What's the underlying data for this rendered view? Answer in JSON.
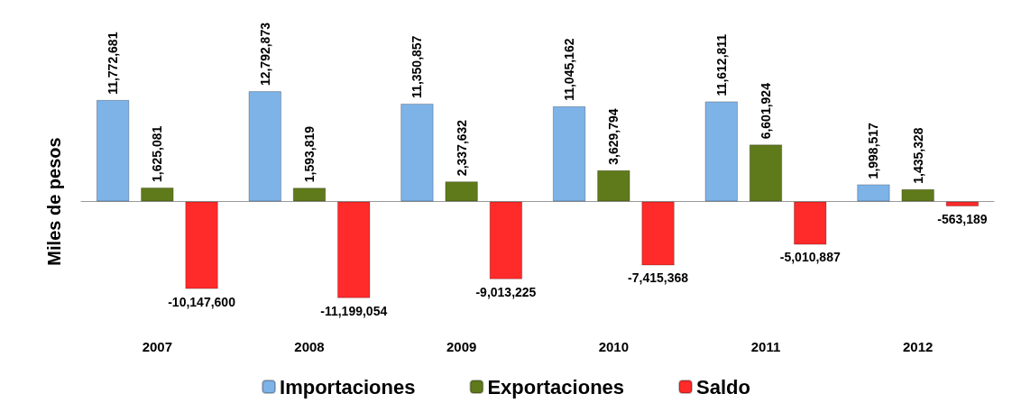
{
  "chart_data": {
    "type": "bar",
    "ylabel": "Miles de pesos",
    "categories": [
      "2007",
      "2008",
      "2009",
      "2010",
      "2011",
      "2012"
    ],
    "series": [
      {
        "name": "Importaciones",
        "color": "#7eb3e8",
        "values": [
          11772681,
          12792873,
          11350857,
          11045162,
          11612811,
          1998517
        ],
        "value_labels": [
          "11,772,681",
          "12,792,873",
          "11,350,857",
          "11,045,162",
          "11,612,811",
          "1,998,517"
        ]
      },
      {
        "name": "Exportaciones",
        "color": "#5f7a1a",
        "values": [
          1625081,
          1593819,
          2337632,
          3629794,
          6601924,
          1435328
        ],
        "value_labels": [
          "1,625,081",
          "1,593,819",
          "2,337,632",
          "3,629,794",
          "6,601,924",
          "1,435,328"
        ]
      },
      {
        "name": "Saldo",
        "color": "#ff2a2a",
        "values": [
          -10147600,
          -11199054,
          -9013225,
          -7415368,
          -5010887,
          -563189
        ],
        "value_labels": [
          "-10,147,600",
          "-11,199,054",
          "-9,013,225",
          "-7,415,368",
          "-5,010,887",
          "-563,189"
        ]
      }
    ],
    "legend": "bottom",
    "grid": false
  }
}
